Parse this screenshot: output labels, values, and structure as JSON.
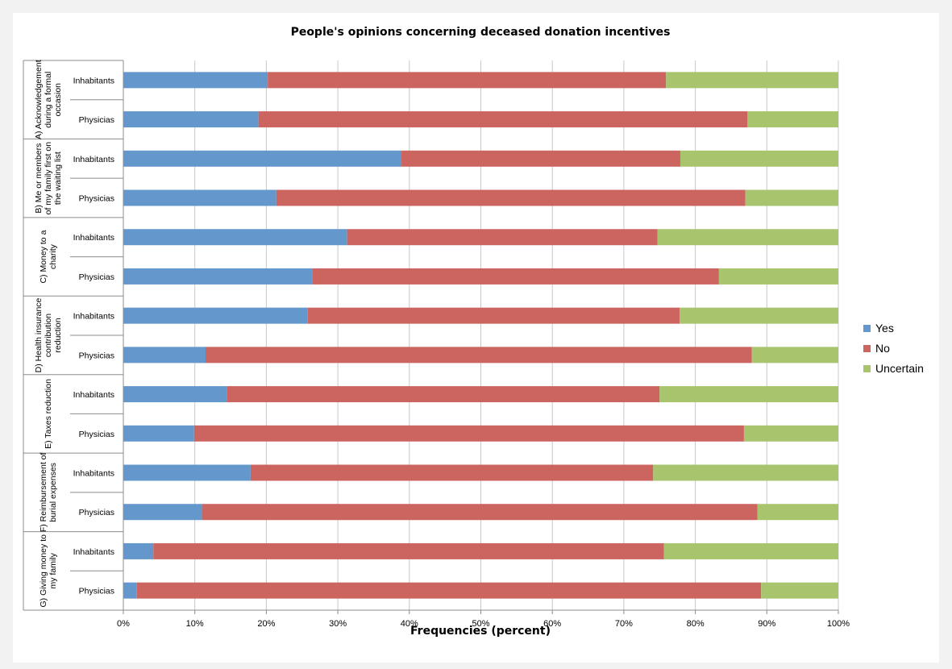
{
  "chart_data": {
    "type": "bar",
    "orientation": "horizontal",
    "stacked": true,
    "percent_stacked": true,
    "title": "People's opinions concerning deceased donation incentives",
    "xlabel": "Frequencies (percent)",
    "ylabel": "",
    "xlim": [
      0,
      100
    ],
    "x_ticks": [
      "0%",
      "10%",
      "20%",
      "30%",
      "40%",
      "50%",
      "60%",
      "70%",
      "80%",
      "90%",
      "100%"
    ],
    "legend_position": "right",
    "grid": true,
    "groups": [
      {
        "label": [
          "A) Acknowledgement",
          "during a formal",
          "occasion"
        ],
        "categories": [
          "Inhabitants",
          "Physicias"
        ]
      },
      {
        "label": [
          "B) Me or members",
          "of my family first on",
          "the waiting list"
        ],
        "categories": [
          "Inhabitants",
          "Physicias"
        ]
      },
      {
        "label": [
          "C) Money to a",
          "charity"
        ],
        "categories": [
          "Inhabitants",
          "Physicias"
        ]
      },
      {
        "label": [
          "D) Health insurance",
          "contribution",
          "reduction"
        ],
        "categories": [
          "Inhabitants",
          "Physicias"
        ]
      },
      {
        "label": [
          "E) Taxes reduction"
        ],
        "categories": [
          "Inhabitants",
          "Physicias"
        ]
      },
      {
        "label": [
          "F) Reimbursement of",
          "burial expenses"
        ],
        "categories": [
          "Inhabitants",
          "Physicias"
        ]
      },
      {
        "label": [
          "G) Giving money to",
          "my family"
        ],
        "categories": [
          "Inhabitants",
          "Physicias"
        ]
      }
    ],
    "series": [
      {
        "name": "Yes",
        "color": "#6497cc",
        "values": [
          20.2,
          18.9,
          38.9,
          21.4,
          31.3,
          26.4,
          25.8,
          11.5,
          14.5,
          9.9,
          17.8,
          11.0,
          4.2,
          1.9
        ]
      },
      {
        "name": "No",
        "color": "#cc6460",
        "values": [
          55.7,
          68.4,
          39.0,
          65.6,
          43.4,
          56.9,
          52.0,
          76.4,
          60.5,
          76.9,
          56.3,
          77.7,
          71.4,
          87.3
        ]
      },
      {
        "name": "Uncertain",
        "color": "#a8c46c",
        "values": [
          24.1,
          12.7,
          22.1,
          13.0,
          25.3,
          16.7,
          22.2,
          12.1,
          25.0,
          13.2,
          25.9,
          11.3,
          24.4,
          10.8
        ]
      }
    ]
  }
}
